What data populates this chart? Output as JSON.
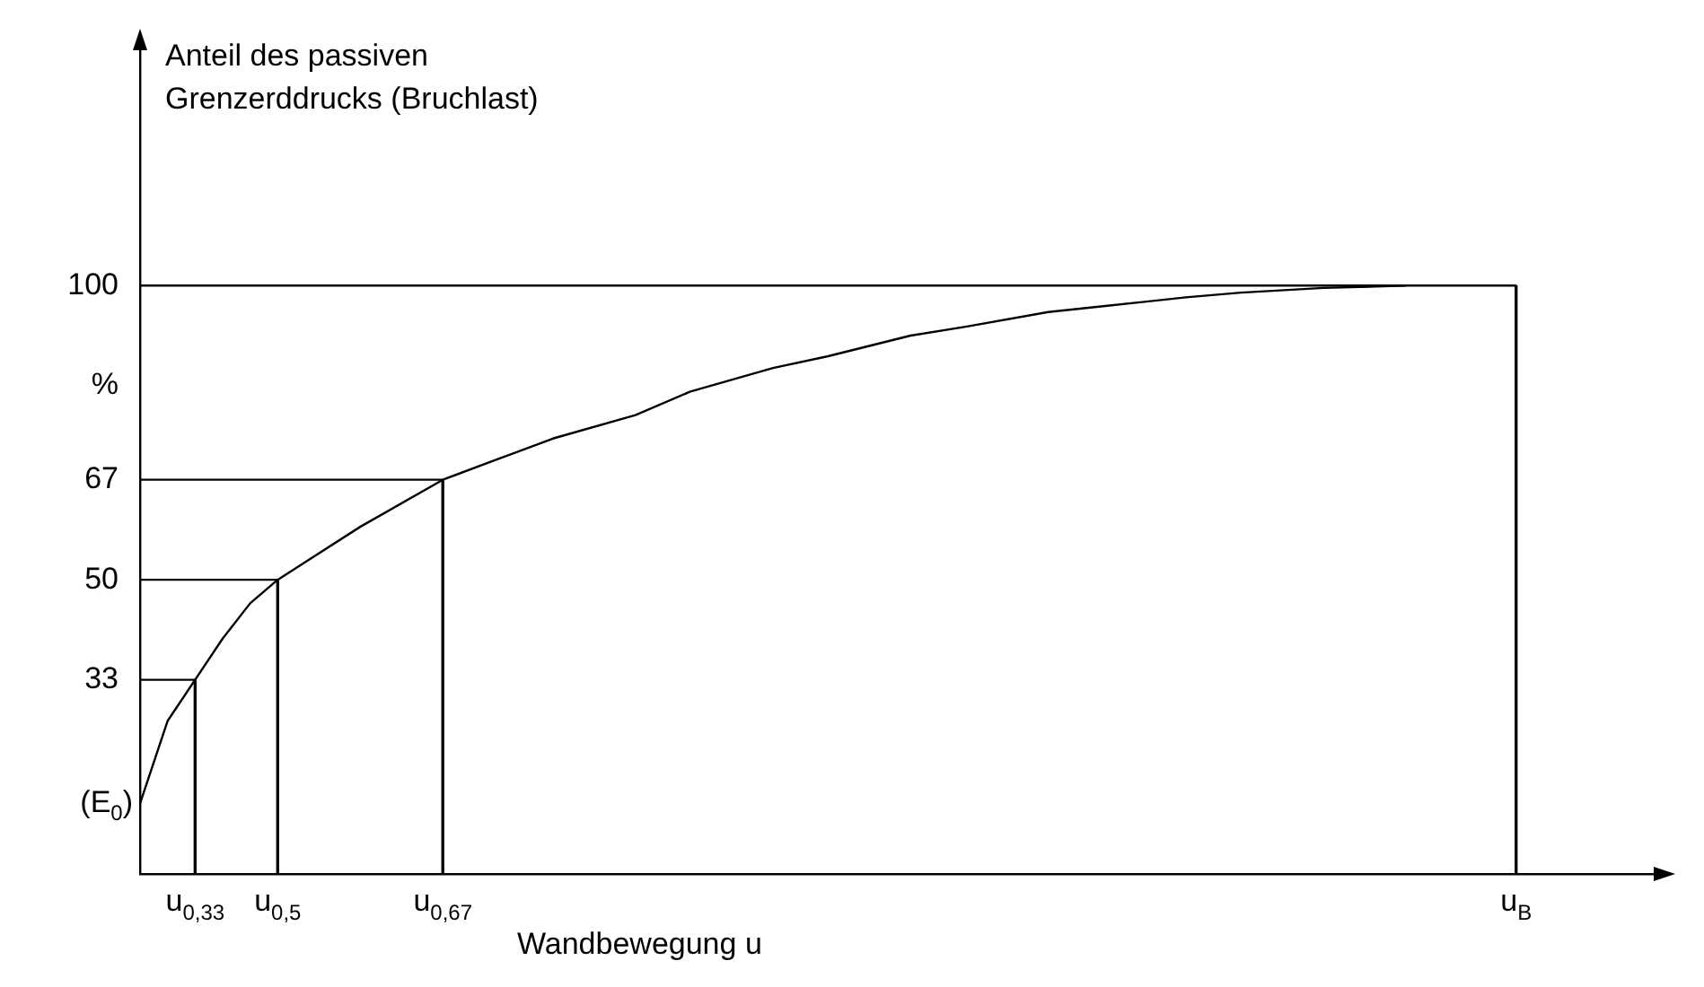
{
  "chart_data": {
    "type": "line",
    "ylabel": "Anteil des passiven Grenzerddrucks (Bruchlast)",
    "xlabel": "Wandbewegung u",
    "categories": [
      null,
      null,
      "u$_{0,33}$",
      null,
      null,
      "u$_{0,5}$",
      null,
      null,
      null,
      null,
      null,
      "u$_{0,67}$",
      null,
      null,
      null,
      null,
      null,
      null,
      null,
      null,
      null,
      null,
      null,
      null,
      null,
      null,
      null,
      null,
      null,
      null,
      null,
      null,
      null,
      null,
      null,
      null,
      null,
      null,
      null,
      null,
      null,
      null,
      null,
      null,
      null,
      null,
      null,
      null,
      null,
      null,
      "u$_{B}$",
      null,
      null,
      null,
      null,
      null
    ],
    "ylim": [
      0,
      140
    ],
    "yticks": [
      33,
      50,
      67,
      {
        "value": 83,
        "label": "%"
      },
      100
    ],
    "annotations": [
      "(E$_{0}$)"
    ],
    "grid": false,
    "legend": false,
    "series": [
      {
        "color": "#000000",
        "values": [
          12,
          26,
          33,
          40,
          46,
          50,
          53,
          null,
          59,
          null,
          null,
          67,
          null,
          70.5,
          null,
          74,
          null,
          null,
          78,
          null,
          82,
          null,
          null,
          86,
          null,
          88,
          null,
          null,
          91.5,
          null,
          93,
          null,
          null,
          95.5,
          null,
          96.5,
          null,
          null,
          98,
          null,
          98.8,
          null,
          null,
          99.6,
          null,
          null,
          100,
          null,
          null,
          null,
          null,
          null,
          null,
          null,
          null,
          null
        ]
      },
      {
        "color": "#000000",
        "values": [
          33,
          null,
          33,
          null,
          null,
          null,
          null,
          null,
          null,
          null,
          null,
          null,
          null,
          null,
          null,
          null,
          null,
          null,
          null,
          null,
          null,
          null,
          null,
          null,
          null,
          null,
          null,
          null,
          null,
          null,
          null,
          null,
          null,
          null,
          null,
          null,
          null,
          null,
          null,
          null,
          null,
          null,
          null,
          null,
          null,
          null,
          null,
          null,
          null,
          null,
          null,
          null,
          null,
          null,
          null,
          null
        ]
      },
      {
        "color": "#000000",
        "values": [
          50,
          null,
          null,
          null,
          null,
          50,
          null,
          null,
          null,
          null,
          null,
          null,
          null,
          null,
          null,
          null,
          null,
          null,
          null,
          null,
          null,
          null,
          null,
          null,
          null,
          null,
          null,
          null,
          null,
          null,
          null,
          null,
          null,
          null,
          null,
          null,
          null,
          null,
          null,
          null,
          null,
          null,
          null,
          null,
          null,
          null,
          null,
          null,
          null,
          null,
          null,
          null,
          null,
          null,
          null,
          null
        ]
      },
      {
        "color": "#000000",
        "values": [
          67,
          null,
          null,
          null,
          null,
          null,
          null,
          null,
          null,
          null,
          null,
          67,
          null,
          null,
          null,
          null,
          null,
          null,
          null,
          null,
          null,
          null,
          null,
          null,
          null,
          null,
          null,
          null,
          null,
          null,
          null,
          null,
          null,
          null,
          null,
          null,
          null,
          null,
          null,
          null,
          null,
          null,
          null,
          null,
          null,
          null,
          null,
          null,
          null,
          null,
          null,
          null,
          null,
          null,
          null,
          null
        ]
      },
      {
        "color": "#000000",
        "values": [
          100,
          null,
          null,
          null,
          null,
          null,
          null,
          null,
          null,
          null,
          null,
          null,
          null,
          null,
          null,
          null,
          null,
          null,
          null,
          null,
          null,
          null,
          null,
          null,
          null,
          null,
          null,
          null,
          null,
          null,
          null,
          null,
          null,
          null,
          null,
          null,
          null,
          null,
          null,
          null,
          null,
          null,
          null,
          null,
          null,
          null,
          null,
          null,
          null,
          null,
          100,
          null,
          null,
          null,
          null,
          null
        ]
      },
      {
        "type": "bar",
        "color": "#000000",
        "values": [
          null,
          null,
          33,
          null,
          null,
          50,
          null,
          null,
          null,
          null,
          null,
          67,
          null,
          null,
          null,
          null,
          null,
          null,
          null,
          null,
          null,
          null,
          null,
          null,
          null,
          null,
          null,
          null,
          null,
          null,
          null,
          null,
          null,
          null,
          null,
          null,
          null,
          null,
          null,
          null,
          null,
          null,
          null,
          null,
          null,
          null,
          null,
          null,
          null,
          null,
          100,
          null,
          null,
          null,
          null,
          null
        ]
      }
    ]
  }
}
